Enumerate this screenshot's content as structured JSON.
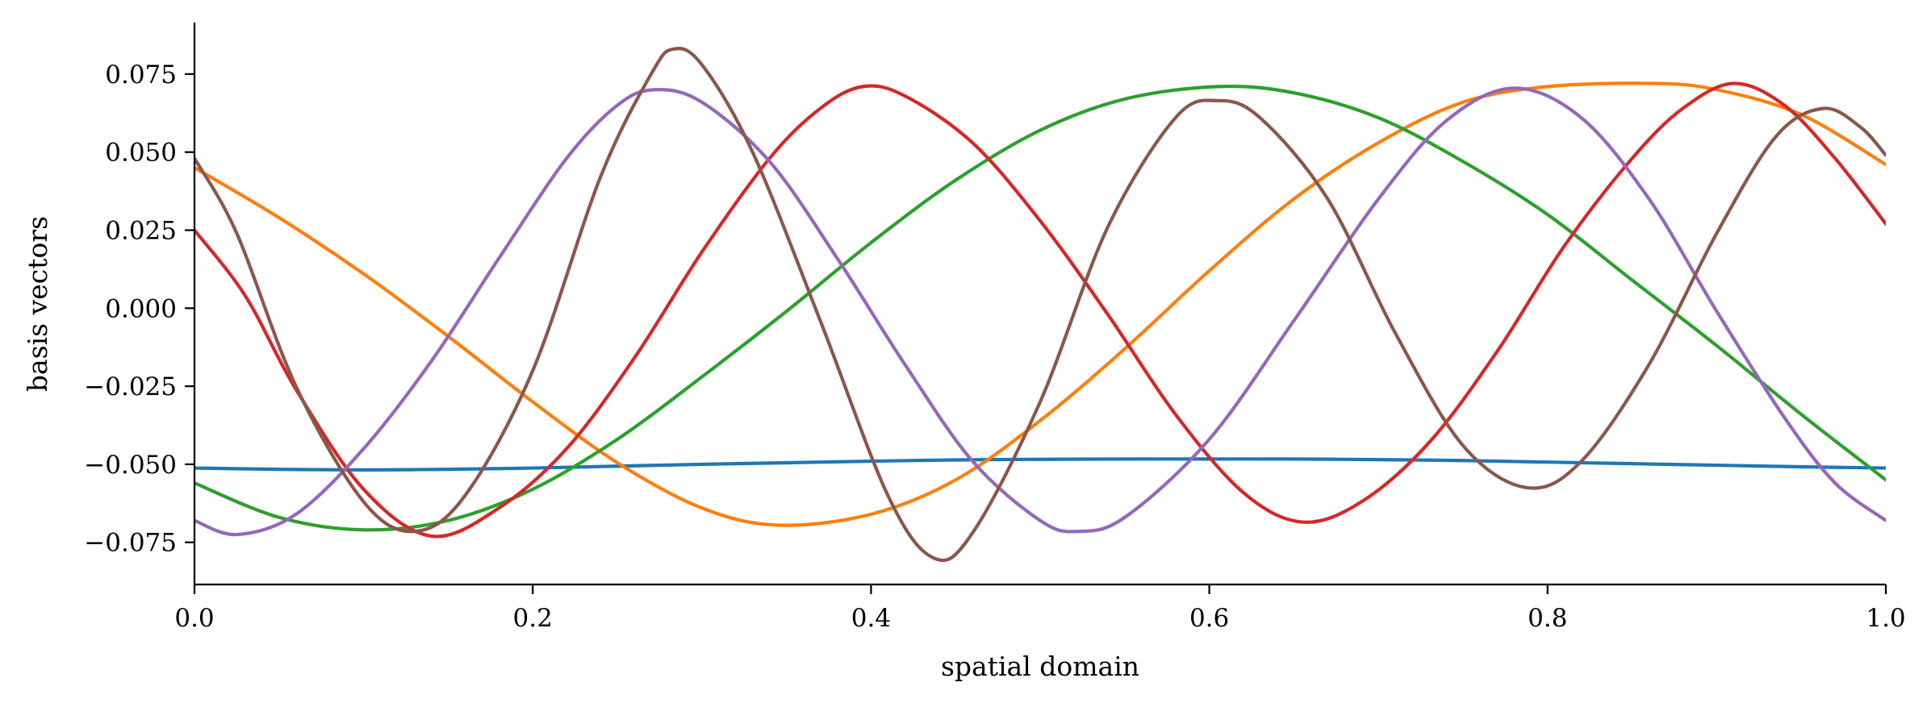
{
  "chart_data": {
    "type": "line",
    "title": "",
    "xlabel": "spatial domain",
    "ylabel": "basis vectors",
    "xlim": [
      0.0,
      1.0
    ],
    "ylim": [
      -0.0885,
      0.0915
    ],
    "grid": false,
    "legend": "none",
    "x_ticks": [
      {
        "value": 0.0,
        "label": "0.0"
      },
      {
        "value": 0.2,
        "label": "0.2"
      },
      {
        "value": 0.4,
        "label": "0.4"
      },
      {
        "value": 0.6,
        "label": "0.6"
      },
      {
        "value": 0.8,
        "label": "0.8"
      },
      {
        "value": 1.0,
        "label": "1.0"
      }
    ],
    "y_ticks": [
      {
        "value": 0.075,
        "label": "0.075"
      },
      {
        "value": 0.05,
        "label": "0.050"
      },
      {
        "value": 0.025,
        "label": "0.025"
      },
      {
        "value": 0.0,
        "label": "0.000"
      },
      {
        "value": -0.025,
        "label": "−0.025"
      },
      {
        "value": -0.05,
        "label": "−0.050"
      },
      {
        "value": -0.075,
        "label": "−0.075"
      }
    ],
    "series": [
      {
        "color": "#1f77b4",
        "points": [
          [
            0.0,
            -0.0512
          ],
          [
            0.05,
            -0.0516
          ],
          [
            0.1,
            -0.0518
          ],
          [
            0.15,
            -0.0516
          ],
          [
            0.2,
            -0.0512
          ],
          [
            0.25,
            -0.0506
          ],
          [
            0.3,
            -0.05
          ],
          [
            0.35,
            -0.0495
          ],
          [
            0.4,
            -0.049
          ],
          [
            0.45,
            -0.0486
          ],
          [
            0.5,
            -0.0484
          ],
          [
            0.55,
            -0.0483
          ],
          [
            0.6,
            -0.0483
          ],
          [
            0.65,
            -0.0483
          ],
          [
            0.7,
            -0.0485
          ],
          [
            0.75,
            -0.0488
          ],
          [
            0.8,
            -0.0493
          ],
          [
            0.85,
            -0.0498
          ],
          [
            0.9,
            -0.0503
          ],
          [
            0.95,
            -0.0508
          ],
          [
            1.0,
            -0.0512
          ]
        ]
      },
      {
        "color": "#ff7f0e",
        "points": [
          [
            0.0,
            0.045
          ],
          [
            0.05,
            0.029
          ],
          [
            0.1,
            0.011
          ],
          [
            0.15,
            -0.009
          ],
          [
            0.2,
            -0.03
          ],
          [
            0.25,
            -0.0495
          ],
          [
            0.3,
            -0.064
          ],
          [
            0.345,
            -0.0695
          ],
          [
            0.4,
            -0.066
          ],
          [
            0.45,
            -0.055
          ],
          [
            0.5,
            -0.036
          ],
          [
            0.55,
            -0.013
          ],
          [
            0.6,
            0.012
          ],
          [
            0.65,
            0.035
          ],
          [
            0.7,
            0.053
          ],
          [
            0.75,
            0.066
          ],
          [
            0.8,
            0.071
          ],
          [
            0.862,
            0.072
          ],
          [
            0.9,
            0.07
          ],
          [
            0.95,
            0.062
          ],
          [
            1.0,
            0.046
          ]
        ]
      },
      {
        "color": "#2ca02c",
        "points": [
          [
            0.0,
            -0.056
          ],
          [
            0.05,
            -0.067
          ],
          [
            0.1,
            -0.071
          ],
          [
            0.15,
            -0.068
          ],
          [
            0.2,
            -0.058
          ],
          [
            0.25,
            -0.042
          ],
          [
            0.3,
            -0.022
          ],
          [
            0.35,
            -0.001
          ],
          [
            0.4,
            0.021
          ],
          [
            0.45,
            0.041
          ],
          [
            0.5,
            0.057
          ],
          [
            0.55,
            0.067
          ],
          [
            0.605,
            0.071
          ],
          [
            0.65,
            0.069
          ],
          [
            0.7,
            0.061
          ],
          [
            0.75,
            0.047
          ],
          [
            0.8,
            0.03
          ],
          [
            0.85,
            0.009
          ],
          [
            0.9,
            -0.012
          ],
          [
            0.95,
            -0.034
          ],
          [
            1.0,
            -0.055
          ]
        ]
      },
      {
        "color": "#d62728",
        "points": [
          [
            0.0,
            0.025
          ],
          [
            0.03,
            0.004
          ],
          [
            0.06,
            -0.026
          ],
          [
            0.1,
            -0.058
          ],
          [
            0.14,
            -0.073
          ],
          [
            0.18,
            -0.064
          ],
          [
            0.22,
            -0.045
          ],
          [
            0.26,
            -0.016
          ],
          [
            0.3,
            0.018
          ],
          [
            0.34,
            0.048
          ],
          [
            0.37,
            0.064
          ],
          [
            0.395,
            0.071
          ],
          [
            0.42,
            0.068
          ],
          [
            0.46,
            0.053
          ],
          [
            0.5,
            0.028
          ],
          [
            0.54,
            -0.002
          ],
          [
            0.58,
            -0.034
          ],
          [
            0.62,
            -0.059
          ],
          [
            0.655,
            -0.0685
          ],
          [
            0.69,
            -0.062
          ],
          [
            0.73,
            -0.043
          ],
          [
            0.77,
            -0.014
          ],
          [
            0.81,
            0.02
          ],
          [
            0.85,
            0.048
          ],
          [
            0.88,
            0.064
          ],
          [
            0.91,
            0.072
          ],
          [
            0.94,
            0.065
          ],
          [
            0.97,
            0.048
          ],
          [
            1.0,
            0.027
          ]
        ]
      },
      {
        "color": "#9467bd",
        "points": [
          [
            0.0,
            -0.068
          ],
          [
            0.025,
            -0.0725
          ],
          [
            0.06,
            -0.066
          ],
          [
            0.1,
            -0.045
          ],
          [
            0.14,
            -0.017
          ],
          [
            0.18,
            0.016
          ],
          [
            0.22,
            0.048
          ],
          [
            0.25,
            0.065
          ],
          [
            0.272,
            0.07
          ],
          [
            0.3,
            0.066
          ],
          [
            0.34,
            0.047
          ],
          [
            0.38,
            0.016
          ],
          [
            0.42,
            -0.018
          ],
          [
            0.46,
            -0.049
          ],
          [
            0.5,
            -0.068
          ],
          [
            0.522,
            -0.0715
          ],
          [
            0.55,
            -0.067
          ],
          [
            0.6,
            -0.042
          ],
          [
            0.65,
            -0.004
          ],
          [
            0.7,
            0.035
          ],
          [
            0.74,
            0.06
          ],
          [
            0.78,
            0.0705
          ],
          [
            0.82,
            0.061
          ],
          [
            0.86,
            0.035
          ],
          [
            0.9,
            -0.001
          ],
          [
            0.94,
            -0.035
          ],
          [
            0.97,
            -0.056
          ],
          [
            1.0,
            -0.068
          ]
        ]
      },
      {
        "color": "#8c564b",
        "points": [
          [
            0.0,
            0.048
          ],
          [
            0.025,
            0.024
          ],
          [
            0.06,
            -0.025
          ],
          [
            0.1,
            -0.062
          ],
          [
            0.13,
            -0.0715
          ],
          [
            0.16,
            -0.06
          ],
          [
            0.2,
            -0.02
          ],
          [
            0.24,
            0.042
          ],
          [
            0.27,
            0.075
          ],
          [
            0.283,
            0.083
          ],
          [
            0.3,
            0.078
          ],
          [
            0.33,
            0.05
          ],
          [
            0.37,
            -0.004
          ],
          [
            0.41,
            -0.06
          ],
          [
            0.437,
            -0.08
          ],
          [
            0.46,
            -0.072
          ],
          [
            0.5,
            -0.03
          ],
          [
            0.54,
            0.026
          ],
          [
            0.58,
            0.061
          ],
          [
            0.605,
            0.0665
          ],
          [
            0.63,
            0.061
          ],
          [
            0.67,
            0.035
          ],
          [
            0.71,
            -0.008
          ],
          [
            0.75,
            -0.044
          ],
          [
            0.788,
            -0.0575
          ],
          [
            0.82,
            -0.049
          ],
          [
            0.86,
            -0.018
          ],
          [
            0.9,
            0.024
          ],
          [
            0.935,
            0.055
          ],
          [
            0.963,
            0.064
          ],
          [
            0.985,
            0.058
          ],
          [
            1.0,
            0.049
          ]
        ]
      }
    ]
  }
}
